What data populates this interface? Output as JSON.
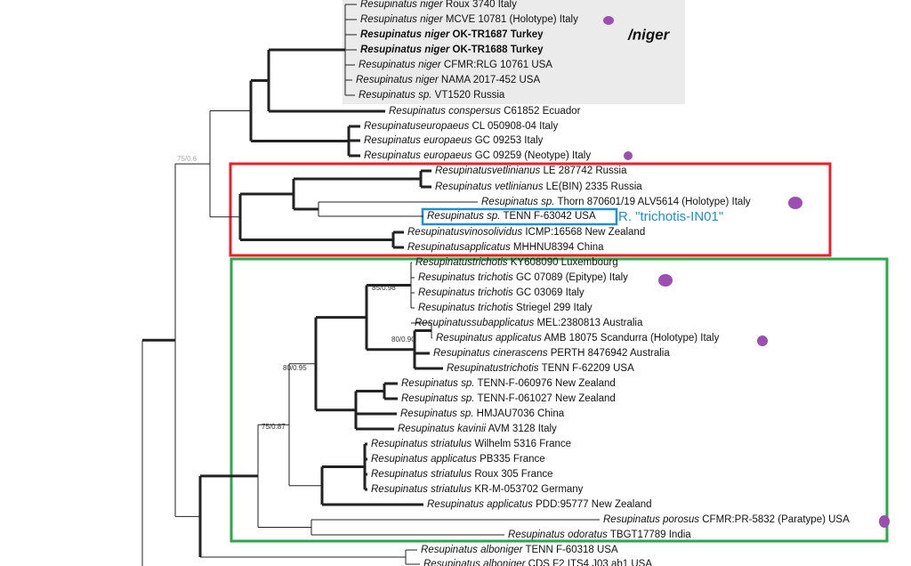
{
  "clade_label": "/niger",
  "annotation": "R. \"trichotis-IN01\"",
  "support_values": [
    "75/0.6",
    "85/0.98",
    "80/0.90",
    "80/0.95",
    "75/0.87"
  ],
  "leaves": [
    {
      "name": "Resupinatus niger",
      "info": "Roux 3740 Italy"
    },
    {
      "name": "Resupinatus niger",
      "info": "MCVE 10781 (Holotype) Italy"
    },
    {
      "name": "Resupinatus niger",
      "info": "OK-TR1687 Turkey"
    },
    {
      "name": "Resupinatus niger",
      "info": "OK-TR1688 Turkey"
    },
    {
      "name": "Resupinatus niger",
      "info": "CFMR:RLG 10761 USA"
    },
    {
      "name": "Resupinatus niger",
      "info": "NAMA 2017-452 USA"
    },
    {
      "name": "Resupinatus sp.",
      "info": "VT1520 Russia"
    },
    {
      "name": "Resupinatus conspersus",
      "info": "C61852 Ecuador"
    },
    {
      "name": "Resupinatuseuropaeus",
      "info": "CL 050908-04 Italy"
    },
    {
      "name": "Resupinatus europaeus",
      "info": "GC 09253 Italy"
    },
    {
      "name": "Resupinatus europaeus",
      "info": "GC 09259 (Neotype) Italy"
    },
    {
      "name": "Resupinatusvetlinianus",
      "info": "LE 287742 Russia"
    },
    {
      "name": "Resupinatus vetlinianus",
      "info": "LE(BIN) 2335 Russia"
    },
    {
      "name": "Resupinatus sp.",
      "info": "Thorn 870601/19 ALV5614 (Holotype) Italy"
    },
    {
      "name": "Resupinatus sp.",
      "info": "TENN F-63042 USA"
    },
    {
      "name": "Resupinatusvinosolividus",
      "info": "ICMP:16568 New Zealand"
    },
    {
      "name": "Resupinatusapplicatus",
      "info": "MHHNU8394 China"
    },
    {
      "name": "Resupinatustrichotis",
      "info": "KY608090 Luxembourg"
    },
    {
      "name": "Resupinatus trichotis",
      "info": "GC 07089 (Epitype) Italy"
    },
    {
      "name": "Resupinatus trichotis",
      "info": "GC 03069 Italy"
    },
    {
      "name": "Resupinatus trichotis",
      "info": "Striegel 299 Italy"
    },
    {
      "name": "Resupinatussubapplicatus",
      "info": "MEL:2380813 Australia"
    },
    {
      "name": "Resupinatus applicatus",
      "info": "AMB 18075 Scandurra (Holotype) Italy"
    },
    {
      "name": "Resupinatus cinerascens",
      "info": "PERTH 8476942 Australia"
    },
    {
      "name": "Resupinatustrichotis",
      "info": "TENN F-62209 USA"
    },
    {
      "name": "Resupinatus sp.",
      "info": "TENN-F-060976 New Zealand"
    },
    {
      "name": "Resupinatus sp.",
      "info": "TENN-F-061027 New Zealand"
    },
    {
      "name": "Resupinatus sp.",
      "info": "HMJAU7036 China"
    },
    {
      "name": "Resupinatus kavinii",
      "info": "AVM 3128 Italy"
    },
    {
      "name": "Resupinatus striatulus",
      "info": "Wilhelm 5316 France"
    },
    {
      "name": "Resupinatus applicatus",
      "info": "PB335 France"
    },
    {
      "name": "Resupinatus striatulus",
      "info": "Roux 305 France"
    },
    {
      "name": "Resupinatus striatulus",
      "info": "KR-M-053702 Germany"
    },
    {
      "name": "Resupinatus applicatus",
      "info": "PDD:95777 New Zealand"
    },
    {
      "name": "Resupinatus porosus",
      "info": "CFMR:PR-5832 (Paratype) USA"
    },
    {
      "name": "Resupinatus odoratus",
      "info": "TBGT17789 India"
    },
    {
      "name": "Resupinatus alboniger",
      "info": "TENN F-60318 USA"
    },
    {
      "name": "Resupinatus alboniger",
      "info": "CDS F2 ITS4 J03 ab1 USA"
    }
  ]
}
